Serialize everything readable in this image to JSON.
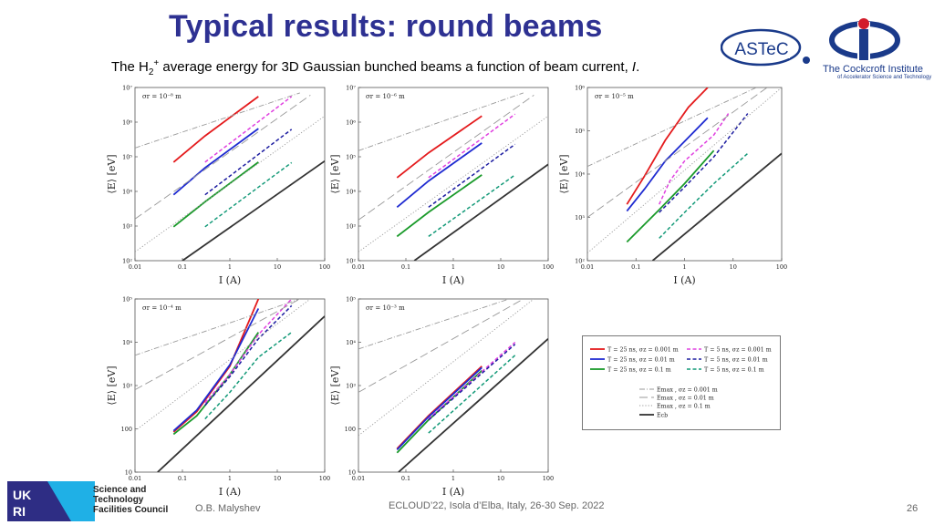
{
  "slide": {
    "title": "Typical results: round beams",
    "subtitle_pre": "The H",
    "subtitle_sub": "2",
    "subtitle_sup": "+",
    "subtitle_post": " average energy for 3D Gaussian bunched beams a function of beam current, ",
    "subtitle_var": "I",
    "subtitle_end": "."
  },
  "logos": {
    "astec": "ASTeC",
    "cockcroft_line1": "The Cockcroft Institute",
    "cockcroft_line2": "of Accelerator Science and Technology",
    "ukri_line1": "Science and",
    "ukri_line2": "Technology",
    "ukri_line3": "Facilities Council",
    "ukri_letters": "UKRI"
  },
  "footer": {
    "author": "O.B. Malyshev",
    "conference": "ECLOUD’22, Isola d’Elba, Italy, 26-30 Sep. 2022",
    "page": "26"
  },
  "colors": {
    "title": "#2e3192",
    "red": "#e41a1c",
    "blue": "#1f2bd1",
    "green": "#1a9a2a",
    "magenta": "#e040e0",
    "navy": "#1c1ca0",
    "teal": "#119977",
    "gray": "#999999",
    "black": "#333333"
  },
  "legend": {
    "entries": [
      {
        "label": "T = 25 ns, σz = 0.001 m",
        "color": "#e41a1c",
        "dash": "solid"
      },
      {
        "label": "T = 25 ns, σz = 0.01 m",
        "color": "#1f2bd1",
        "dash": "solid"
      },
      {
        "label": "T = 25 ns, σz = 0.1 m",
        "color": "#1a9a2a",
        "dash": "solid"
      },
      {
        "label": "T = 5 ns, σz = 0.001 m",
        "color": "#e040e0",
        "dash": "dashed"
      },
      {
        "label": "T = 5 ns, σz = 0.01 m",
        "color": "#1c1ca0",
        "dash": "dashed"
      },
      {
        "label": "T = 5 ns, σz = 0.1 m",
        "color": "#119977",
        "dash": "dashed"
      },
      {
        "label": "Emax , σz = 0.001 m",
        "color": "#999999",
        "dash": "dashdot"
      },
      {
        "label": "Emax , σz = 0.01 m",
        "color": "#999999",
        "dash": "longdash"
      },
      {
        "label": "Emax , σz = 0.1 m",
        "color": "#999999",
        "dash": "dotted"
      },
      {
        "label": "Ecb",
        "color": "#333333",
        "dash": "solid"
      }
    ]
  },
  "chart_data": [
    {
      "type": "line",
      "annotation": "σr = 10⁻⁸ m",
      "xlabel": "I (A)",
      "ylabel": "⟨E⟩ [eV]",
      "xlim": [
        0.01,
        100
      ],
      "ylim": [
        100,
        10000000
      ],
      "xscale": "log",
      "yscale": "log",
      "xticks": [
        "0.01",
        "0.1",
        "1",
        "10",
        "100"
      ],
      "yticks": [
        "10²",
        "10³",
        "10⁴",
        "10⁵",
        "10⁶",
        "10⁷"
      ],
      "series": [
        {
          "legend": 0,
          "x": [
            0.065,
            0.3,
            4
          ],
          "y": [
            70000,
            400000,
            5500000
          ]
        },
        {
          "legend": 1,
          "x": [
            0.065,
            0.3,
            4
          ],
          "y": [
            8000,
            48000,
            650000
          ]
        },
        {
          "legend": 2,
          "x": [
            0.065,
            0.3,
            4
          ],
          "y": [
            950,
            5000,
            70000
          ]
        },
        {
          "legend": 3,
          "x": [
            0.3,
            20
          ],
          "y": [
            70000,
            5500000
          ]
        },
        {
          "legend": 4,
          "x": [
            0.3,
            20
          ],
          "y": [
            8000,
            620000
          ]
        },
        {
          "legend": 5,
          "x": [
            0.3,
            20
          ],
          "y": [
            950,
            68000
          ]
        },
        {
          "legend": 6,
          "x": [
            0.01,
            30
          ],
          "y": [
            180000,
            7000000
          ]
        },
        {
          "legend": 7,
          "x": [
            0.01,
            50
          ],
          "y": [
            1600,
            6000000
          ]
        },
        {
          "legend": 8,
          "x": [
            0.01,
            100
          ],
          "y": [
            180,
            1500000
          ]
        },
        {
          "legend": 9,
          "x": [
            0.1,
            100
          ],
          "y": [
            100,
            75000
          ]
        }
      ]
    },
    {
      "type": "line",
      "annotation": "σr = 10⁻⁶ m",
      "xlabel": "I (A)",
      "ylabel": "⟨E⟩ [eV]",
      "xlim": [
        0.01,
        100
      ],
      "ylim": [
        100,
        10000000
      ],
      "xscale": "log",
      "yscale": "log",
      "xticks": [
        "0.01",
        "0.1",
        "1",
        "10",
        "100"
      ],
      "yticks": [
        "10²",
        "10³",
        "10⁴",
        "10⁵",
        "10⁶",
        "10⁷"
      ],
      "series": [
        {
          "legend": 0,
          "x": [
            0.065,
            0.3,
            4
          ],
          "y": [
            25000,
            130000,
            1500000
          ]
        },
        {
          "legend": 1,
          "x": [
            0.065,
            0.3,
            4
          ],
          "y": [
            3500,
            20000,
            250000
          ]
        },
        {
          "legend": 2,
          "x": [
            0.065,
            0.3,
            4
          ],
          "y": [
            500,
            2500,
            30000
          ]
        },
        {
          "legend": 3,
          "x": [
            0.3,
            20
          ],
          "y": [
            25000,
            1700000
          ]
        },
        {
          "legend": 4,
          "x": [
            0.3,
            20
          ],
          "y": [
            3500,
            230000
          ]
        },
        {
          "legend": 5,
          "x": [
            0.3,
            20
          ],
          "y": [
            500,
            30000
          ]
        },
        {
          "legend": 6,
          "x": [
            0.01,
            30
          ],
          "y": [
            150000,
            7000000
          ]
        },
        {
          "legend": 7,
          "x": [
            0.01,
            50
          ],
          "y": [
            1500,
            6000000
          ]
        },
        {
          "legend": 8,
          "x": [
            0.01,
            100
          ],
          "y": [
            180,
            1500000
          ]
        },
        {
          "legend": 9,
          "x": [
            0.15,
            100
          ],
          "y": [
            100,
            60000
          ]
        }
      ]
    },
    {
      "type": "line",
      "annotation": "σr = 10⁻⁵ m",
      "xlabel": "I (A)",
      "ylabel": "⟨E⟩ [eV]",
      "xlim": [
        0.01,
        100
      ],
      "ylim": [
        100,
        1000000
      ],
      "xscale": "log",
      "yscale": "log",
      "xticks": [
        "0.01",
        "0.1",
        "1",
        "10",
        "100"
      ],
      "yticks": [
        "10²",
        "10³",
        "10⁴",
        "10⁵",
        "10⁶"
      ],
      "series": [
        {
          "legend": 0,
          "x": [
            0.065,
            0.15,
            0.4,
            1.2,
            3
          ],
          "y": [
            2000,
            9000,
            60000,
            350000,
            1000000
          ]
        },
        {
          "legend": 1,
          "x": [
            0.065,
            0.15,
            0.4,
            1.2,
            3
          ],
          "y": [
            1400,
            4500,
            20000,
            70000,
            200000
          ]
        },
        {
          "legend": 2,
          "x": [
            0.065,
            0.3,
            1,
            4
          ],
          "y": [
            270,
            1500,
            6000,
            35000
          ]
        },
        {
          "legend": 3,
          "x": [
            0.3,
            0.5,
            1,
            4,
            8
          ],
          "y": [
            2000,
            7000,
            20000,
            80000,
            250000
          ]
        },
        {
          "legend": 4,
          "x": [
            0.3,
            1,
            4,
            20
          ],
          "y": [
            1300,
            5000,
            25000,
            250000
          ]
        },
        {
          "legend": 5,
          "x": [
            0.3,
            1,
            4,
            20
          ],
          "y": [
            330,
            1300,
            6000,
            30000
          ]
        },
        {
          "legend": 6,
          "x": [
            0.01,
            30
          ],
          "y": [
            15000,
            1000000
          ]
        },
        {
          "legend": 7,
          "x": [
            0.01,
            50
          ],
          "y": [
            1000,
            1000000
          ]
        },
        {
          "legend": 8,
          "x": [
            0.01,
            100
          ],
          "y": [
            150,
            1000000
          ]
        },
        {
          "legend": 9,
          "x": [
            0.22,
            100
          ],
          "y": [
            100,
            30000
          ]
        }
      ]
    },
    {
      "type": "line",
      "annotation": "σr = 10⁻⁴ m",
      "xlabel": "I (A)",
      "ylabel": "⟨E⟩ [eV]",
      "xlim": [
        0.01,
        100
      ],
      "ylim": [
        10,
        100000
      ],
      "xscale": "log",
      "yscale": "log",
      "xticks": [
        "0.01",
        "0.1",
        "1",
        "10",
        "100"
      ],
      "yticks": [
        "10",
        "100",
        "10³",
        "10⁴",
        "10⁵"
      ],
      "series": [
        {
          "legend": 0,
          "x": [
            0.065,
            0.2,
            1,
            4
          ],
          "y": [
            85,
            250,
            2800,
            100000
          ]
        },
        {
          "legend": 1,
          "x": [
            0.065,
            0.2,
            1,
            4
          ],
          "y": [
            90,
            270,
            3000,
            60000
          ]
        },
        {
          "legend": 2,
          "x": [
            0.065,
            0.2,
            1,
            4
          ],
          "y": [
            75,
            200,
            1800,
            17000
          ]
        },
        {
          "legend": 3,
          "x": [
            0.3,
            1,
            4,
            20
          ],
          "y": [
            400,
            1800,
            15000,
            100000
          ]
        },
        {
          "legend": 4,
          "x": [
            0.3,
            1,
            4,
            20
          ],
          "y": [
            350,
            1600,
            12000,
            70000
          ]
        },
        {
          "legend": 5,
          "x": [
            0.3,
            1,
            4,
            20
          ],
          "y": [
            170,
            700,
            4500,
            17000
          ]
        },
        {
          "legend": 6,
          "x": [
            0.01,
            30
          ],
          "y": [
            5000,
            100000
          ]
        },
        {
          "legend": 7,
          "x": [
            0.01,
            30
          ],
          "y": [
            800,
            100000
          ]
        },
        {
          "legend": 8,
          "x": [
            0.01,
            50
          ],
          "y": [
            90,
            100000
          ]
        },
        {
          "legend": 9,
          "x": [
            0.03,
            100
          ],
          "y": [
            10,
            40000
          ]
        }
      ]
    },
    {
      "type": "line",
      "annotation": "σr = 10⁻³ m",
      "xlabel": "I (A)",
      "ylabel": "⟨E⟩ [eV]",
      "xlim": [
        0.01,
        100
      ],
      "ylim": [
        10,
        100000
      ],
      "xscale": "log",
      "yscale": "log",
      "xticks": [
        "0.01",
        "0.1",
        "1",
        "10",
        "100"
      ],
      "yticks": [
        "10",
        "100",
        "10³",
        "10⁴",
        "10⁵"
      ],
      "series": [
        {
          "legend": 0,
          "x": [
            0.065,
            0.3,
            4
          ],
          "y": [
            35,
            200,
            2800
          ]
        },
        {
          "legend": 1,
          "x": [
            0.065,
            0.3,
            4
          ],
          "y": [
            33,
            190,
            2600
          ]
        },
        {
          "legend": 2,
          "x": [
            0.065,
            0.3,
            4
          ],
          "y": [
            28,
            160,
            2200
          ]
        },
        {
          "legend": 3,
          "x": [
            0.3,
            20
          ],
          "y": [
            170,
            10000
          ]
        },
        {
          "legend": 4,
          "x": [
            0.3,
            20
          ],
          "y": [
            160,
            9000
          ]
        },
        {
          "legend": 5,
          "x": [
            0.3,
            20
          ],
          "y": [
            80,
            5000
          ]
        },
        {
          "legend": 6,
          "x": [
            0.01,
            15
          ],
          "y": [
            7000,
            100000
          ]
        },
        {
          "legend": 7,
          "x": [
            0.01,
            30
          ],
          "y": [
            700,
            100000
          ]
        },
        {
          "legend": 8,
          "x": [
            0.01,
            50
          ],
          "y": [
            70,
            100000
          ]
        },
        {
          "legend": 9,
          "x": [
            0.07,
            100
          ],
          "y": [
            10,
            12000
          ]
        }
      ]
    }
  ]
}
